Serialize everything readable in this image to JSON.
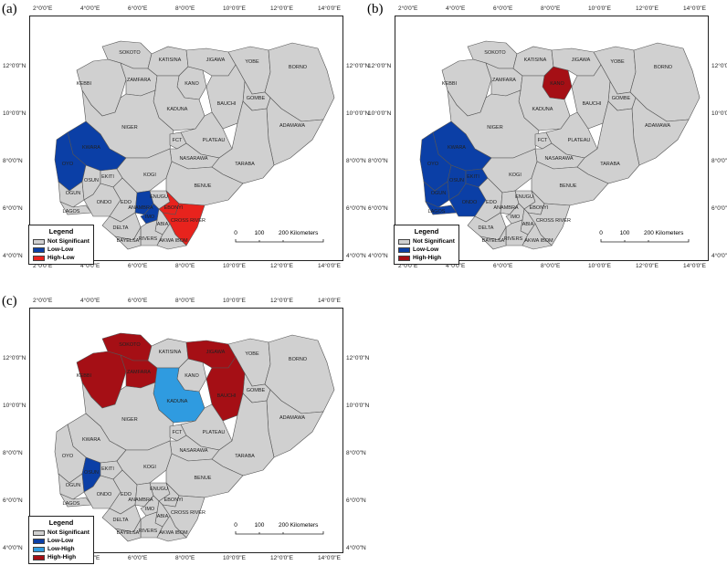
{
  "colors": {
    "not_significant": "#d0d0d0",
    "low_low": "#0b3fa6",
    "high_low": "#e8231d",
    "high_high": "#a50f15",
    "low_high": "#2f9be0",
    "border": "#555555",
    "background": "#ffffff"
  },
  "lon_ticks": [
    "2°0'0\"E",
    "4°0'0\"E",
    "6°0'0\"E",
    "8°0'0\"E",
    "10°0'0\"E",
    "12°0'0\"E",
    "14°0'0\"E"
  ],
  "lat_ticks": [
    "12°0'0\"N",
    "10°0'0\"N",
    "8°0'0\"N",
    "6°0'0\"N",
    "4°0'0\"N"
  ],
  "state_labels": [
    "SOKOTO",
    "KATISINA",
    "JIGAWA",
    "YOBE",
    "BORNO",
    "ZAMFARA",
    "KANO",
    "KEBBI",
    "GOMBE",
    "KADUNA",
    "BAUCHI",
    "ADAMAWA",
    "NIGER",
    "KWARA",
    "FCT",
    "PLATEAU",
    "OYO",
    "NASARAWA",
    "OGUN",
    "EKITI",
    "KOGI",
    "TARABA",
    "OSUN",
    "ONDO",
    "BENUE",
    "LAGOS",
    "EDO",
    "ENUGU",
    "EBONYI",
    "ANAMBRA",
    "DELTA",
    "IMO",
    "ABIA",
    "CROSS RIVER",
    "BAYELSA",
    "RIVERS",
    "AKWA IBOM"
  ],
  "scale_bar": {
    "ticks": [
      "0",
      "100",
      "200 Kilometers"
    ]
  },
  "panels": [
    {
      "letter": "(a)",
      "legend": {
        "title": "Legend",
        "items": [
          {
            "label": "Not Significant",
            "color_key": "not_significant"
          },
          {
            "label": "Low-Low",
            "color_key": "low_low"
          },
          {
            "label": "High-Low",
            "color_key": "high_low"
          }
        ]
      },
      "highlighted": {
        "low_low": [
          "KWARA",
          "OYO",
          "ANAMBRA",
          "IMO"
        ],
        "high_low": [
          "EBONYI",
          "CROSS RIVER"
        ]
      }
    },
    {
      "letter": "(b)",
      "legend": {
        "title": "Legend",
        "items": [
          {
            "label": "Not Significant",
            "color_key": "not_significant"
          },
          {
            "label": "Low-Low",
            "color_key": "low_low"
          },
          {
            "label": "High-High",
            "color_key": "high_high"
          }
        ]
      },
      "highlighted": {
        "low_low": [
          "KWARA",
          "OYO",
          "OGUN",
          "OSUN",
          "EKITI",
          "ONDO",
          "LAGOS"
        ],
        "high_high": [
          "KANO"
        ]
      }
    },
    {
      "letter": "(c)",
      "legend": {
        "title": "Legend",
        "items": [
          {
            "label": "Not Significant",
            "color_key": "not_significant"
          },
          {
            "label": "Low-Low",
            "color_key": "low_low"
          },
          {
            "label": "Low-High",
            "color_key": "low_high"
          },
          {
            "label": "High-High",
            "color_key": "high_high"
          }
        ]
      },
      "highlighted": {
        "low_low": [
          "OSUN"
        ],
        "low_high": [
          "KADUNA"
        ],
        "high_high": [
          "SOKOTO",
          "KEBBI",
          "ZAMFARA",
          "JIGAWA",
          "BAUCHI"
        ]
      }
    }
  ]
}
